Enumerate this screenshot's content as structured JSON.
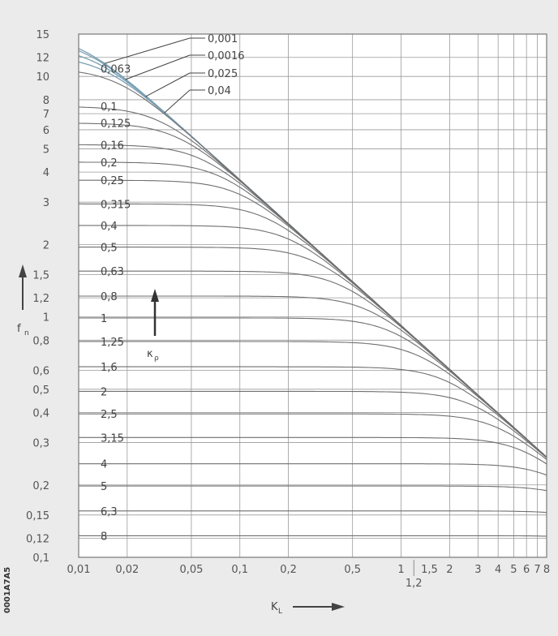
{
  "chart_data": {
    "type": "line",
    "xscale": "log",
    "yscale": "log",
    "xlim": [
      0.01,
      8
    ],
    "ylim": [
      0.1,
      15
    ],
    "xlabel": "K",
    "xlabel_sub": "L",
    "ylabel": "f",
    "ylabel_sub": "n",
    "param_label": "κ",
    "param_label_sub": "ρ",
    "figure_id": "0001A7A5",
    "grid": true,
    "x_ticks": [
      {
        "v": 0.01,
        "label": "0,01"
      },
      {
        "v": 0.02,
        "label": "0,02"
      },
      {
        "v": 0.05,
        "label": "0,05"
      },
      {
        "v": 0.1,
        "label": "0,1"
      },
      {
        "v": 0.2,
        "label": "0,2"
      },
      {
        "v": 0.5,
        "label": "0,5"
      },
      {
        "v": 1,
        "label": "1"
      },
      {
        "v": 1.5,
        "label": "1,5"
      },
      {
        "v": 2,
        "label": "2"
      },
      {
        "v": 3,
        "label": "3"
      },
      {
        "v": 4,
        "label": "4"
      },
      {
        "v": 5,
        "label": "5"
      },
      {
        "v": 6,
        "label": "6"
      },
      {
        "v": 7,
        "label": "7"
      },
      {
        "v": 8,
        "label": "8"
      }
    ],
    "x_extra_tick": {
      "v": 1.2,
      "label": "1,2"
    },
    "y_ticks": [
      {
        "v": 15,
        "label": "15"
      },
      {
        "v": 12,
        "label": "12"
      },
      {
        "v": 10,
        "label": "10"
      },
      {
        "v": 8,
        "label": "8"
      },
      {
        "v": 7,
        "label": "7"
      },
      {
        "v": 6,
        "label": "6"
      },
      {
        "v": 5,
        "label": "5"
      },
      {
        "v": 4,
        "label": "4"
      },
      {
        "v": 3,
        "label": "3"
      },
      {
        "v": 2,
        "label": "2"
      },
      {
        "v": 1.5,
        "label": "1,5"
      },
      {
        "v": 1.2,
        "label": "1,2"
      },
      {
        "v": 1,
        "label": "1"
      },
      {
        "v": 0.8,
        "label": "0,8"
      },
      {
        "v": 0.6,
        "label": "0,6"
      },
      {
        "v": 0.5,
        "label": "0,5"
      },
      {
        "v": 0.4,
        "label": "0,4"
      },
      {
        "v": 0.3,
        "label": "0,3"
      },
      {
        "v": 0.2,
        "label": "0,2"
      },
      {
        "v": 0.15,
        "label": "0,15"
      },
      {
        "v": 0.12,
        "label": "0,12"
      },
      {
        "v": 0.1,
        "label": "0,1"
      }
    ],
    "vgrid": [
      0.01,
      0.02,
      0.05,
      0.1,
      0.2,
      0.5,
      1,
      2,
      3,
      4,
      5,
      6,
      7,
      8
    ],
    "hgrid": [
      15,
      12,
      10,
      8,
      7,
      6,
      5,
      4,
      3,
      2,
      1.5,
      1.2,
      1,
      0.8,
      0.6,
      0.5,
      0.4,
      0.3,
      0.2,
      0.15,
      0.12,
      0.1
    ],
    "series": [
      {
        "name": "0,001",
        "plateau": 15.0,
        "leader": true
      },
      {
        "name": "0,0016",
        "plateau": 14.4,
        "leader": true
      },
      {
        "name": "0,025",
        "plateau": 13.3,
        "leader": true
      },
      {
        "name": "0,04",
        "plateau": 12.2,
        "leader": true
      },
      {
        "name": "0,063",
        "plateau": 10.8
      },
      {
        "name": "0,1",
        "plateau": 7.5
      },
      {
        "name": "0,125",
        "plateau": 6.4
      },
      {
        "name": "0,16",
        "plateau": 5.2
      },
      {
        "name": "0,2",
        "plateau": 4.4
      },
      {
        "name": "0,25",
        "plateau": 3.7
      },
      {
        "name": "0,315",
        "plateau": 2.95
      },
      {
        "name": "0,4",
        "plateau": 2.4
      },
      {
        "name": "0,5",
        "plateau": 1.95
      },
      {
        "name": "0,63",
        "plateau": 1.55
      },
      {
        "name": "0,8",
        "plateau": 1.22
      },
      {
        "name": "1",
        "plateau": 0.99
      },
      {
        "name": "1,25",
        "plateau": 0.79
      },
      {
        "name": "1,6",
        "plateau": 0.62
      },
      {
        "name": "2",
        "plateau": 0.49
      },
      {
        "name": "2,5",
        "plateau": 0.395
      },
      {
        "name": "3,15",
        "plateau": 0.315
      },
      {
        "name": "4",
        "plateau": 0.245
      },
      {
        "name": "5",
        "plateau": 0.198
      },
      {
        "name": "6,3",
        "plateau": 0.156
      },
      {
        "name": "8",
        "plateau": 0.123
      }
    ],
    "envelope": {
      "x": [
        0.01,
        7.8
      ],
      "y": [
        15,
        0.265
      ]
    }
  }
}
